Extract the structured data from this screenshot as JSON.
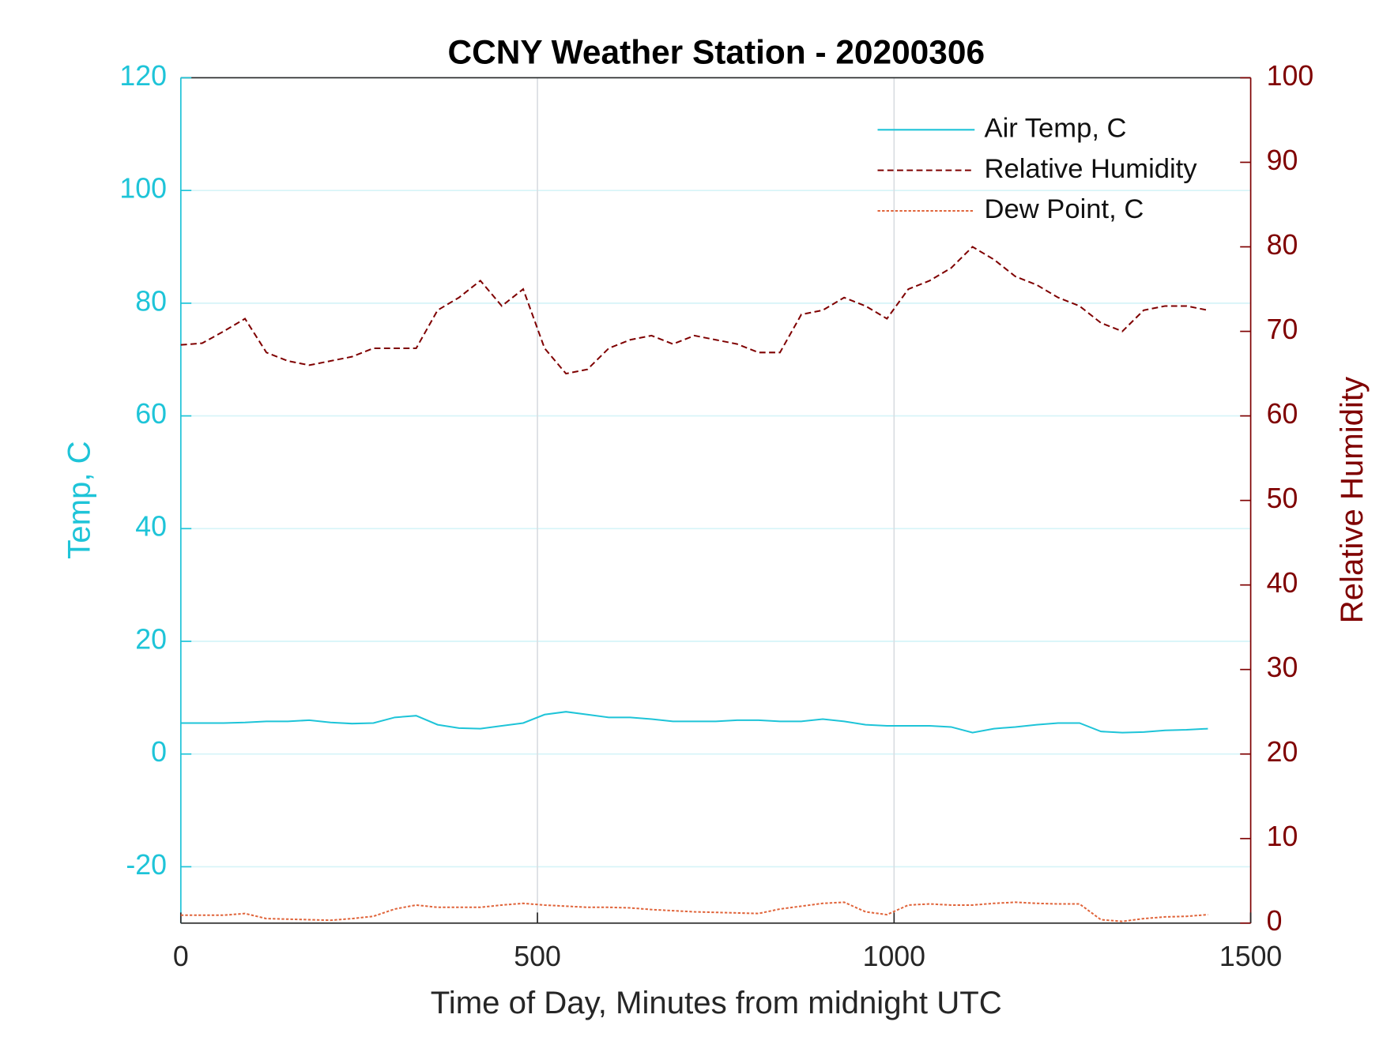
{
  "chart_data": {
    "type": "line",
    "title": "CCNY Weather Station - 20200306",
    "x_label": "Time of Day, Minutes from midnight UTC",
    "y_label": "Temp, C",
    "y2_label": "Relative Humidity",
    "x": [
      0,
      30,
      60,
      90,
      120,
      150,
      180,
      210,
      240,
      270,
      300,
      330,
      360,
      390,
      420,
      450,
      480,
      510,
      540,
      570,
      600,
      630,
      660,
      690,
      720,
      750,
      780,
      810,
      840,
      870,
      900,
      930,
      960,
      990,
      1020,
      1050,
      1080,
      1110,
      1140,
      1170,
      1200,
      1230,
      1260,
      1290,
      1320,
      1350,
      1380,
      1410,
      1440
    ],
    "series": [
      {
        "name": "Air Temp, C",
        "color": "#1ec4d8",
        "line_style": "solid",
        "axis": "y",
        "values": [
          5.5,
          5.5,
          5.5,
          5.6,
          5.8,
          5.8,
          6.0,
          5.6,
          5.4,
          5.5,
          6.5,
          6.8,
          5.2,
          4.6,
          4.5,
          5.0,
          5.5,
          7.0,
          7.5,
          7.0,
          6.5,
          6.5,
          6.2,
          5.8,
          5.8,
          5.8,
          6.0,
          6.0,
          5.8,
          5.8,
          6.2,
          5.8,
          5.2,
          5.0,
          5.0,
          5.0,
          4.8,
          3.8,
          4.5,
          4.8,
          5.2,
          5.5,
          5.5,
          4.0,
          3.8,
          3.9,
          4.2,
          4.3,
          4.5
        ]
      },
      {
        "name": "Relative Humidity",
        "color": "#7f0000",
        "line_style": "dashed",
        "axis": "y2",
        "values": [
          68.4,
          68.6,
          70,
          71.5,
          67.5,
          66.5,
          66,
          66.5,
          67,
          68,
          68,
          68,
          72.5,
          74,
          76,
          73,
          75,
          68,
          65,
          65.5,
          68,
          69,
          69.5,
          68.5,
          69.5,
          69,
          68.5,
          67.5,
          67.5,
          72,
          72.5,
          74,
          73,
          71.5,
          75,
          76,
          77.5,
          80,
          78.5,
          76.5,
          75.5,
          74,
          73,
          71,
          70,
          72.5,
          73,
          73,
          72.5
        ]
      },
      {
        "name": "Dew Point, C",
        "color": "#e0643a",
        "line_style": "dotted",
        "axis": "y",
        "values": [
          -28.6,
          -28.6,
          -28.6,
          -28.3,
          -29.2,
          -29.3,
          -29.4,
          -29.5,
          -29.2,
          -28.8,
          -27.5,
          -26.8,
          -27.2,
          -27.2,
          -27.2,
          -26.8,
          -26.5,
          -26.8,
          -27.0,
          -27.2,
          -27.2,
          -27.3,
          -27.6,
          -27.8,
          -28.0,
          -28.1,
          -28.2,
          -28.3,
          -27.5,
          -27.0,
          -26.5,
          -26.3,
          -28.0,
          -28.5,
          -26.8,
          -26.6,
          -26.8,
          -26.8,
          -26.5,
          -26.3,
          -26.5,
          -26.6,
          -26.6,
          -29.4,
          -29.7,
          -29.2,
          -28.9,
          -28.8,
          -28.5
        ]
      }
    ],
    "xlim": [
      0,
      1500
    ],
    "xticks": [
      0,
      500,
      1000,
      1500
    ],
    "ylim": [
      -30,
      120
    ],
    "yticks": [
      -20,
      0,
      20,
      40,
      60,
      80,
      100,
      120
    ],
    "y2lim": [
      0,
      100
    ],
    "y2ticks": [
      0,
      10,
      20,
      30,
      40,
      50,
      60,
      70,
      80,
      90,
      100
    ],
    "grid": true,
    "legend": "upper right",
    "y_color": "#1ec4d8",
    "y2_color": "#7f0000"
  }
}
